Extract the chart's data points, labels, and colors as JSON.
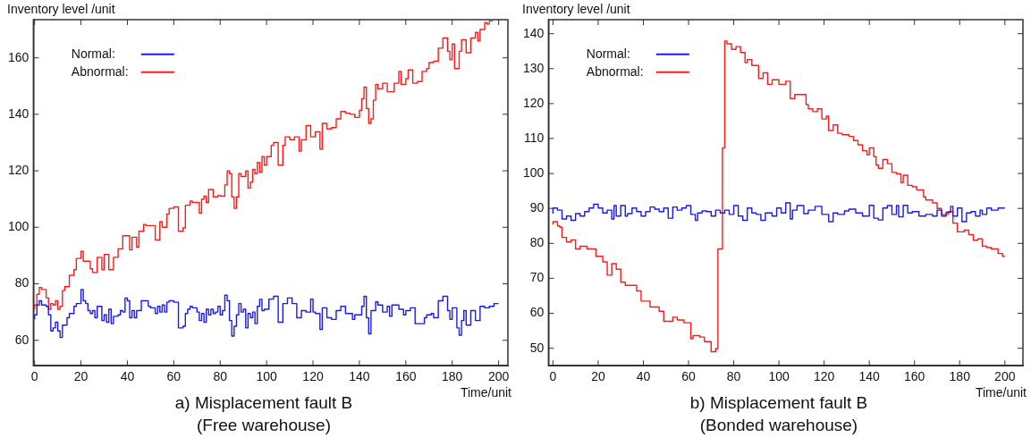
{
  "chart_data": [
    {
      "type": "step",
      "title": "a) Misplacement fault B",
      "subtitle": "(Free warehouse)",
      "xlabel": "Time/unit",
      "ylabel": "Inventory level /unit",
      "xlim": [
        -0.5,
        204
      ],
      "xticks": [
        0,
        20,
        40,
        60,
        80,
        100,
        120,
        140,
        160,
        180,
        200
      ],
      "ylim": [
        51,
        173.5
      ],
      "yticks": [
        60,
        80,
        100,
        120,
        140,
        160
      ],
      "legend": "top left",
      "series": [
        {
          "name": "Normal:",
          "color": "#1a1aee",
          "x": [
            0,
            1,
            2,
            3,
            5,
            6,
            7,
            8,
            9,
            10,
            11,
            12,
            14,
            15,
            17,
            18,
            20,
            21,
            22,
            23,
            24,
            25,
            26,
            27,
            29,
            30,
            31,
            32,
            33,
            34,
            36,
            37,
            38,
            39,
            40,
            41,
            42,
            43,
            44,
            46,
            47,
            49,
            50,
            52,
            53,
            54,
            55,
            56,
            57,
            58,
            60,
            62,
            64,
            65,
            66,
            67,
            68,
            70,
            71,
            72,
            73,
            74,
            75,
            76,
            77,
            78,
            79,
            80,
            81,
            82,
            83,
            84,
            85,
            86,
            87,
            88,
            89,
            90,
            91,
            92,
            93,
            94,
            95,
            96,
            97,
            98,
            99,
            101,
            103,
            105,
            107,
            109,
            111,
            113,
            115,
            117,
            119,
            120,
            121,
            123,
            124,
            126,
            128,
            130,
            132,
            134,
            137,
            138,
            141,
            142,
            143,
            144,
            145,
            147,
            148,
            150,
            152,
            153,
            154,
            157,
            159,
            160,
            162,
            164,
            165,
            168,
            169,
            171,
            172,
            174,
            176,
            178,
            179,
            180,
            182,
            183,
            184,
            185,
            186,
            188,
            190,
            192,
            194,
            196,
            198,
            200
          ],
          "values": [
            67.4,
            69,
            72.5,
            74,
            72.5,
            72,
            69,
            63.3,
            64.4,
            66.4,
            63.3,
            61,
            65.4,
            68,
            69.5,
            72,
            73,
            78,
            74,
            73,
            70.5,
            69.5,
            70.5,
            68,
            72,
            67,
            69,
            66.4,
            71,
            65.9,
            68.5,
            69,
            70.5,
            70,
            75,
            74,
            68,
            70.5,
            68,
            70.5,
            74,
            74,
            72,
            71.5,
            69.5,
            72,
            70,
            72.5,
            70,
            73.5,
            74,
            73.5,
            64.4,
            65,
            69.5,
            71,
            72,
            71.5,
            70,
            67,
            69.5,
            66.4,
            71,
            69,
            71,
            69.5,
            70,
            72,
            69,
            70.5,
            76,
            74,
            67,
            61.5,
            65,
            69,
            73,
            70,
            71,
            64.4,
            69.5,
            68,
            70,
            65.9,
            72,
            74.5,
            70.5,
            71,
            74.6,
            75.6,
            66.4,
            73,
            75,
            73,
            68,
            70.5,
            70,
            74.6,
            70,
            69.5,
            63.9,
            71.5,
            68,
            67.4,
            70.5,
            72,
            69.5,
            67.4,
            69,
            72,
            75.6,
            68,
            62.3,
            70.5,
            73.6,
            72.5,
            70,
            72,
            68.5,
            72.5,
            71,
            69,
            70.5,
            71.5,
            65.9,
            65.9,
            68,
            69,
            69.5,
            68,
            74,
            75.6,
            70.5,
            67.4,
            71.5,
            64.4,
            61.8,
            67,
            70.5,
            65.4,
            70.5,
            67,
            72,
            71.5,
            72,
            73
          ]
        },
        {
          "name": "Abnormal:",
          "color": "#ff1a1a",
          "x": [
            0,
            1,
            2,
            3,
            5,
            6,
            7,
            8,
            9,
            10,
            11,
            12,
            13,
            15,
            17,
            18,
            20,
            21,
            22,
            24,
            25,
            27,
            29,
            30,
            32,
            34,
            36,
            38,
            40,
            41,
            42,
            44,
            45,
            47,
            48,
            52,
            54,
            55,
            57,
            58,
            60,
            62,
            64,
            65,
            67,
            68,
            71,
            72,
            73,
            74,
            75,
            77,
            79,
            80,
            82,
            83,
            84,
            85,
            86,
            87,
            88,
            89,
            91,
            92,
            93,
            94,
            95,
            96,
            97,
            98,
            99,
            100,
            102,
            103,
            105,
            107,
            108,
            110,
            112,
            114,
            115,
            117,
            119,
            121,
            123,
            124,
            126,
            128,
            130,
            132,
            134,
            136,
            138,
            140,
            141,
            142,
            143,
            144,
            145,
            146,
            147,
            148,
            150,
            152,
            153,
            155,
            157,
            158,
            160,
            161,
            163,
            165,
            167,
            169,
            170,
            172,
            174,
            176,
            178,
            179,
            180,
            181,
            183,
            184,
            186,
            188,
            190,
            191,
            192,
            194,
            195,
            196
          ],
          "values": [
            71,
            72.5,
            76.3,
            78.7,
            78,
            75,
            71,
            73,
            72.5,
            74,
            71,
            72,
            77.6,
            79,
            83,
            85,
            89,
            91.5,
            88,
            88,
            85.3,
            84,
            89.4,
            85,
            90.4,
            85,
            89.4,
            92.4,
            97,
            97,
            92,
            96.5,
            93,
            98.6,
            101,
            100.6,
            95.5,
            102,
            100,
            104.7,
            106.7,
            107.2,
            98.6,
            99.8,
            107.8,
            109.3,
            108.8,
            105,
            110,
            111,
            108.8,
            113.4,
            110.8,
            111.3,
            111,
            115,
            120,
            119,
            110.8,
            106.7,
            110.8,
            119,
            118,
            120,
            113.9,
            116,
            120.5,
            119,
            123,
            119.5,
            125,
            122,
            125,
            129,
            130,
            122,
            129,
            132,
            131,
            132,
            127,
            131,
            136,
            132,
            133.8,
            127.6,
            136.8,
            134.8,
            135.3,
            138.4,
            141,
            140.4,
            140,
            138.9,
            141.4,
            145.5,
            149.6,
            142,
            136.8,
            138.4,
            145,
            150.6,
            149,
            151,
            148,
            148,
            151,
            155.2,
            150.6,
            152.6,
            155.7,
            151,
            151.6,
            155.2,
            156.2,
            158.3,
            158.8,
            163.4,
            167,
            162.3,
            159.3,
            164.9,
            156.2,
            162.3,
            166.4,
            161.8,
            167,
            169,
            166,
            170,
            172.5,
            172
          ]
        },
        {
          "color": "#22aa22",
          "x": [
            196,
            197.5
          ],
          "values": [
            172,
            173
          ]
        }
      ]
    },
    {
      "type": "step",
      "title": "b) Misplacement fault B",
      "subtitle": "(Bonded warehouse)",
      "xlabel": "Time/unit",
      "ylabel": "Inventory level /unit",
      "xlim": [
        -2,
        208
      ],
      "xticks": [
        0,
        20,
        40,
        60,
        80,
        100,
        120,
        140,
        160,
        180,
        200
      ],
      "ylim": [
        45,
        144
      ],
      "yticks": [
        50,
        60,
        70,
        80,
        90,
        100,
        110,
        120,
        130,
        140
      ],
      "legend": "top left",
      "series": [
        {
          "name": "Normal:",
          "color": "#1a1aee",
          "x": [
            0,
            2,
            4,
            6,
            8,
            10,
            12,
            14,
            16,
            18,
            20,
            22,
            24,
            26,
            27,
            28,
            30,
            32,
            33,
            35,
            37,
            39,
            41,
            43,
            45,
            47,
            49,
            51,
            53,
            55,
            57,
            59,
            61,
            63,
            64,
            66,
            68,
            70,
            72,
            74,
            76,
            78,
            80,
            82,
            84,
            86,
            88,
            90,
            92,
            94,
            97,
            99,
            101,
            103,
            105,
            106,
            108,
            111,
            113,
            116,
            119,
            122,
            124,
            126,
            129,
            131,
            134,
            137,
            140,
            142,
            144,
            146,
            148,
            150,
            152,
            153,
            155,
            157,
            159,
            162,
            165,
            168,
            170,
            172,
            174,
            176,
            177,
            179,
            181,
            183,
            185,
            187,
            189,
            190,
            192,
            194,
            197,
            199,
            200
          ],
          "values": [
            88.5,
            90.1,
            89.5,
            87,
            87.8,
            86.6,
            88.5,
            87.8,
            89.1,
            90.1,
            91.2,
            90.1,
            88.7,
            89.5,
            87,
            90.8,
            87.8,
            90.8,
            87.8,
            88.5,
            90.1,
            89.1,
            87.8,
            89.1,
            90.4,
            89.8,
            89.1,
            90.1,
            87.2,
            90.4,
            89.5,
            90.1,
            90.8,
            88.3,
            86.6,
            88.7,
            89.3,
            89.1,
            87.8,
            89.5,
            88.7,
            89.5,
            88.3,
            90.8,
            87.8,
            86.6,
            90.1,
            88.7,
            88.3,
            86.6,
            88.7,
            87.8,
            90.1,
            88.7,
            91.6,
            87,
            89.5,
            90.8,
            88.5,
            89.5,
            90.6,
            88.3,
            86.2,
            88.7,
            88.3,
            89.3,
            89.8,
            88.7,
            87.8,
            90.9,
            87.2,
            86.7,
            90.1,
            90.8,
            88.3,
            90.8,
            87.6,
            90.9,
            88.7,
            89.1,
            87.8,
            88.3,
            87.8,
            89.5,
            87.8,
            88.9,
            90.6,
            87.8,
            90.1,
            86.2,
            88.7,
            89.1,
            87.8,
            89.5,
            88.3,
            90.1,
            89.5,
            90.1,
            90.1
          ]
        },
        {
          "name": "Abnormal:",
          "color": "#ff1a1a",
          "x": [
            0,
            2,
            3,
            4,
            6,
            8,
            10,
            12,
            15,
            19,
            22,
            24,
            26,
            28,
            30,
            32,
            37,
            39,
            41,
            43,
            47,
            49,
            53,
            55,
            58,
            61,
            62,
            65,
            67,
            70,
            72,
            73,
            75,
            76,
            77,
            79,
            81,
            83,
            85,
            86,
            88,
            91,
            93,
            95,
            97,
            100,
            103,
            105,
            107,
            109,
            112,
            113,
            115,
            117,
            119,
            121,
            122,
            124,
            126,
            128,
            131,
            133,
            135,
            137,
            139,
            140,
            142,
            143,
            144,
            146,
            148,
            150,
            152,
            154,
            155,
            157,
            159,
            161,
            164,
            165,
            168,
            170,
            172,
            175,
            177,
            179,
            182,
            184,
            186,
            188,
            190,
            192,
            194,
            197,
            199,
            200
          ],
          "values": [
            85.4,
            86.2,
            85,
            84.6,
            81.7,
            80.4,
            81,
            78.4,
            79.2,
            78.4,
            76.3,
            74.7,
            70.9,
            74.2,
            72.6,
            68.9,
            68,
            66.4,
            63.5,
            63.5,
            61.8,
            60.6,
            57.7,
            58.9,
            58.1,
            57.3,
            52.7,
            53.6,
            53.2,
            51.9,
            49,
            49.9,
            78.4,
            107.3,
            137.9,
            137.1,
            135.5,
            136.3,
            134.6,
            131.7,
            132.6,
            130.9,
            127.2,
            128.8,
            125.5,
            126.8,
            125.5,
            126.4,
            121.4,
            122.6,
            122.6,
            119.7,
            118.5,
            117.7,
            118.5,
            115.6,
            116.4,
            112.3,
            113.9,
            111.5,
            111.1,
            110.6,
            109.4,
            108.2,
            106.5,
            105.3,
            107.3,
            104.8,
            102.4,
            101.5,
            104,
            102.8,
            100.3,
            99.9,
            97.4,
            99.5,
            96.6,
            96.2,
            95.3,
            93.3,
            92.4,
            91.6,
            90,
            88.3,
            89.1,
            85.8,
            83.3,
            83.8,
            82.5,
            80.9,
            81.3,
            79.2,
            78.8,
            78.4,
            77.1,
            76.3
          ]
        }
      ]
    }
  ]
}
